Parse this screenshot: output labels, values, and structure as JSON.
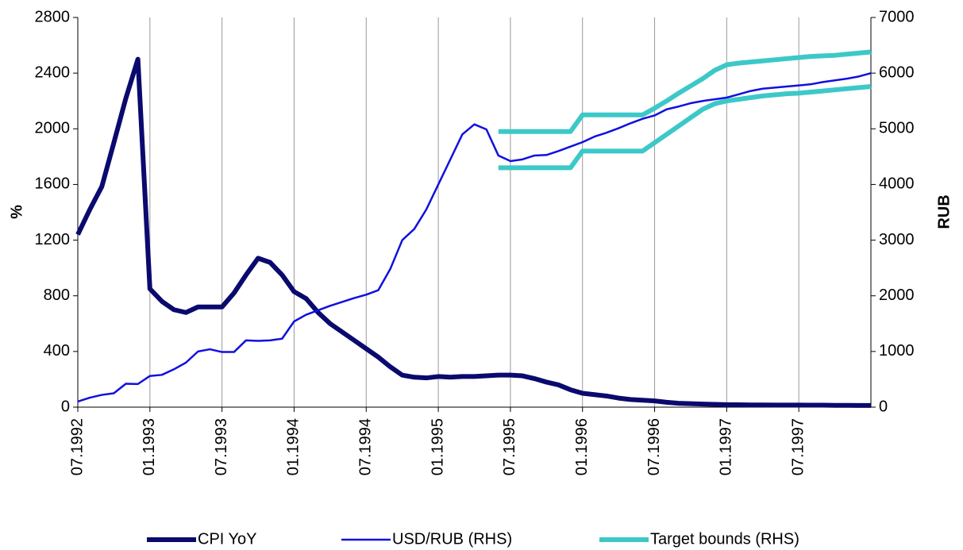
{
  "chart_data": {
    "type": "line",
    "y_label": "%",
    "y2_label": "RUB",
    "categories": [
      "07.1992",
      null,
      null,
      null,
      null,
      null,
      "01.1993",
      null,
      null,
      null,
      null,
      null,
      "07.1993",
      null,
      null,
      null,
      null,
      null,
      "01.1994",
      null,
      null,
      null,
      null,
      null,
      "07.1994",
      null,
      null,
      null,
      null,
      null,
      "01.1995",
      null,
      null,
      null,
      null,
      null,
      "07.1995",
      null,
      null,
      null,
      null,
      null,
      "01.1996",
      null,
      null,
      null,
      null,
      null,
      "07.1996",
      null,
      null,
      null,
      null,
      null,
      "01.1997",
      null,
      null,
      null,
      null,
      null,
      "07.1997",
      null,
      null,
      null,
      null,
      null,
      null
    ],
    "ylim": [
      0,
      2800
    ],
    "yticks": [
      0,
      400,
      800,
      1200,
      1600,
      2000,
      2400,
      2800
    ],
    "y2lim": [
      0,
      7000
    ],
    "y2ticks": [
      0,
      1000,
      2000,
      3000,
      4000,
      5000,
      6000,
      7000
    ],
    "series": [
      {
        "name": "CPI YoY",
        "color": "#0a0a6e",
        "width": 6,
        "values": [
          1240,
          1420,
          1585,
          1900,
          2220,
          2500,
          850,
          760,
          700,
          680,
          720,
          720,
          720,
          820,
          950,
          1070,
          1040,
          950,
          830,
          780,
          680,
          600,
          540,
          480,
          420,
          360,
          290,
          230,
          215,
          210,
          220,
          215,
          220,
          220,
          225,
          230,
          230,
          225,
          205,
          180,
          160,
          125,
          100,
          90,
          80,
          65,
          55,
          50,
          45,
          35,
          28,
          25,
          22,
          20,
          18,
          17,
          16,
          16,
          15,
          15,
          15,
          14,
          14,
          13,
          13,
          12,
          12
        ]
      },
      {
        "name": "USD/RUB (RHS)",
        "color": "#1010e0",
        "width": 2.5,
        "axis": "y2",
        "values": [
          100,
          170,
          220,
          250,
          420,
          415,
          560,
          580,
          680,
          800,
          1000,
          1040,
          990,
          990,
          1200,
          1190,
          1200,
          1230,
          1540,
          1660,
          1740,
          1820,
          1890,
          1960,
          2020,
          2100,
          2480,
          3000,
          3200,
          3550,
          4000,
          4450,
          4900,
          5080,
          4990,
          4520,
          4420,
          4450,
          4520,
          4530,
          4600,
          4680,
          4760,
          4860,
          4930,
          5010,
          5100,
          5180,
          5240,
          5350,
          5400,
          5460,
          5500,
          5530,
          5560,
          5620,
          5680,
          5720,
          5740,
          5760,
          5780,
          5800,
          5840,
          5870,
          5900,
          5940,
          6000
        ]
      },
      {
        "name": "Target bounds (RHS)",
        "color": "#3cc8c8",
        "width": 6,
        "axis": "y2",
        "values": [
          null,
          null,
          null,
          null,
          null,
          null,
          null,
          null,
          null,
          null,
          null,
          null,
          null,
          null,
          null,
          null,
          null,
          null,
          null,
          null,
          null,
          null,
          null,
          null,
          null,
          null,
          null,
          null,
          null,
          null,
          null,
          null,
          null,
          null,
          null,
          4950,
          4950,
          4950,
          4950,
          4950,
          4950,
          4950,
          5250,
          5250,
          5250,
          5250,
          5250,
          5250,
          5370,
          5500,
          5640,
          5770,
          5900,
          6050,
          6150,
          6180,
          6200,
          6220,
          6240,
          6260,
          6280,
          6300,
          6310,
          6320,
          6340,
          6360,
          6380
        ],
        "lower_values": [
          null,
          null,
          null,
          null,
          null,
          null,
          null,
          null,
          null,
          null,
          null,
          null,
          null,
          null,
          null,
          null,
          null,
          null,
          null,
          null,
          null,
          null,
          null,
          null,
          null,
          null,
          null,
          null,
          null,
          null,
          null,
          null,
          null,
          null,
          null,
          4300,
          4300,
          4300,
          4300,
          4300,
          4300,
          4300,
          4600,
          4600,
          4600,
          4600,
          4600,
          4600,
          4750,
          4900,
          5050,
          5200,
          5350,
          5450,
          5500,
          5530,
          5560,
          5590,
          5610,
          5630,
          5640,
          5660,
          5680,
          5700,
          5720,
          5740,
          5760
        ]
      }
    ]
  }
}
